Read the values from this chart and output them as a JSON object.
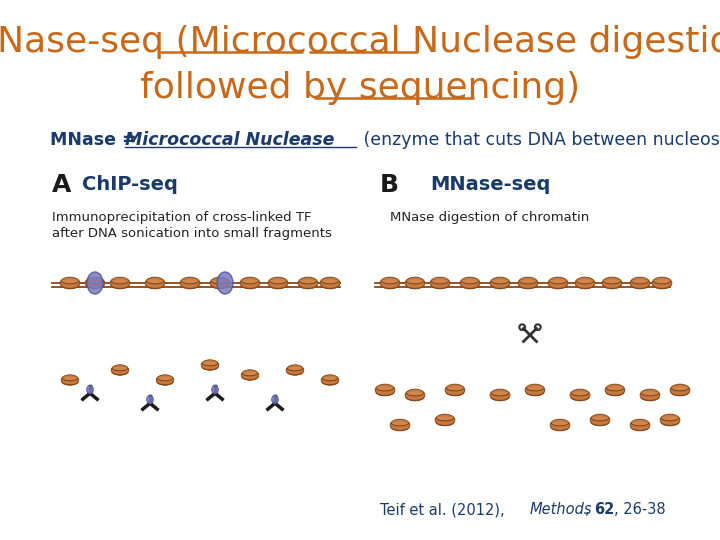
{
  "title_line1": "MNase-seq (Micrococcal Nuclease digestion",
  "title_line2": "followed by sequencing)",
  "title_color": "#c8691a",
  "title_fontsize": 26,
  "subtitle_color": "#1a3a6b",
  "subtitle_fontsize": 12.5,
  "citation_color": "#1a3a6b",
  "citation_fontsize": 10.5,
  "bg_color": "#ffffff",
  "nucleosome_color": "#c87941",
  "dna_color": "#8b4513",
  "tf_color": "#7b7bbf",
  "scissors_color": "#444444",
  "label_color": "#1a3a6b",
  "chip_label": "ChIP-seq",
  "mnase_label": "MNase-seq",
  "chip_desc1": "Immunoprecipitation of cross-linked TF",
  "chip_desc2": "after DNA sonication into small fragments",
  "mnase_desc": "MNase digestion of chromatin"
}
